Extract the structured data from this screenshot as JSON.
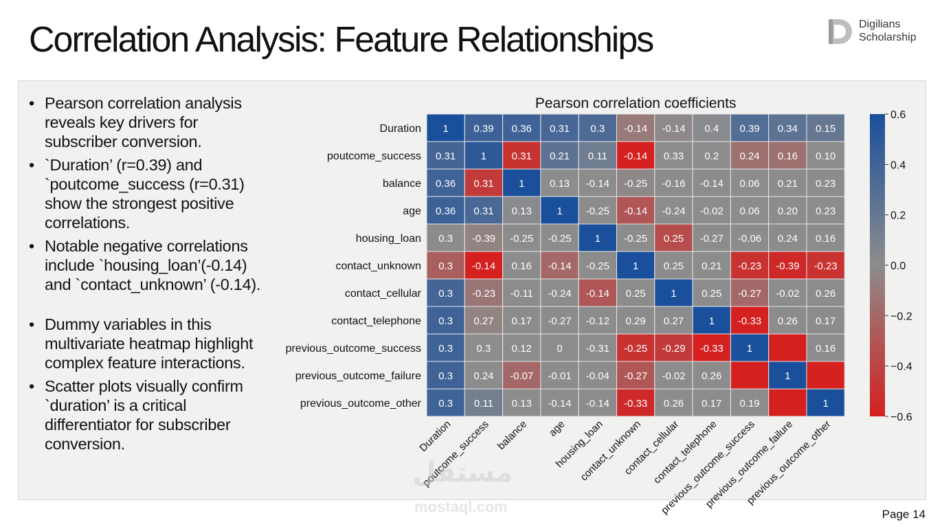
{
  "title": "Correlation Analysis: Feature Relationships",
  "logo": {
    "line1": "Digilians",
    "line2": "Scholarship"
  },
  "bullets": [
    "Pearson correlation analysis reveals key drivers for subscriber conversion.",
    "`Duration’ (r=0.39) and `poutcome_success (r=0.31) show the strongest positive correlations.",
    "Notable negative correlations include `housing_loan’(-0.14) and `contact_unknown’ (-0.14).",
    "Dummy variables in this multivariate heatmap highlight complex feature interactions.",
    "Scatter plots visually confirm `duration’ is a critical differentiator for subscriber conversion."
  ],
  "watermark": {
    "arabic": "مستقل",
    "latin": "mostaql.com"
  },
  "page": "Page 14",
  "colors": {
    "positive": "#1a4f9c",
    "neutral": "#8c8c8c",
    "negative": "#d4201f"
  },
  "chart_data": {
    "type": "heatmap",
    "title": "Pearson correlation coefficients",
    "rows": [
      "Duration",
      "poutcome_success",
      "balance",
      "age",
      "housing_loan",
      "contact_unknown",
      "contact_cellular",
      "contact_telephone",
      "previous_outcome_success",
      "previous_outcome_failure",
      "previous_outcome_other"
    ],
    "columns": [
      "Duration",
      "poutcome_success",
      "balance",
      "age",
      "housing_loan",
      "contact_unknown",
      "contact_cellular",
      "contact_telephone",
      "previous_outcome_success",
      "previous_outcome_failure",
      "previous_outcome_other"
    ],
    "labels": [
      [
        "1",
        "0.39",
        "0.36",
        "0.31",
        "0.3",
        "-0.14",
        "-0.14",
        "0.4",
        "0.39",
        "0.34",
        "0.15"
      ],
      [
        "0.31",
        "1",
        "0.31",
        "0.21",
        "0.11",
        "-0.14",
        "0.33",
        "0.2",
        "0.24",
        "0.16",
        "0.10"
      ],
      [
        "0.36",
        "0.31",
        "1",
        "0.13",
        "-0.14",
        "-0.25",
        "-0.16",
        "-0.14",
        "0.06",
        "0.21",
        "0.23"
      ],
      [
        "0.36",
        "0.31",
        "0.13",
        "1",
        "-0.25",
        "-0.14",
        "-0.24",
        "-0.02",
        "0.06",
        "0.20",
        "0.23"
      ],
      [
        "0.3",
        "-0.39",
        "-0.25",
        "-0.25",
        "1",
        "-0.25",
        "0.25",
        "-0.27",
        "-0.06",
        "0.24",
        "0.16"
      ],
      [
        "0.3",
        "-0.14",
        "0.16",
        "-0.14",
        "-0.25",
        "1",
        "0.25",
        "0.21",
        "-0.23",
        "-0.39",
        "-0.23"
      ],
      [
        "0.3",
        "-0.23",
        "-0.11",
        "-0.24",
        "-0.14",
        "0.25",
        "1",
        "0.25",
        "-0.27",
        "-0.02",
        "0.26"
      ],
      [
        "0.3",
        "0.27",
        "0.17",
        "-0.27",
        "-0.12",
        "0.29",
        "0.27",
        "1",
        "-0.33",
        "0.26",
        "0.17"
      ],
      [
        "0.3",
        "0.3",
        "0.12",
        "0",
        "-0.31",
        "-0.25",
        "-0.29",
        "-0.33",
        "1",
        "",
        "0.16"
      ],
      [
        "0.3",
        "0.24",
        "-0.07",
        "-0.01",
        "-0.04",
        "-0.27",
        "-0.02",
        "0.26",
        "",
        "1",
        ""
      ],
      [
        "0.3",
        "0.11",
        "0.13",
        "-0.14",
        "-0.14",
        "-0.33",
        "0.26",
        "0.17",
        "0.19",
        "",
        "1"
      ]
    ],
    "color_values": [
      [
        0.6,
        0.42,
        0.4,
        0.36,
        0.33,
        -0.1,
        -0.02,
        0.02,
        0.3,
        0.25,
        0.2
      ],
      [
        0.38,
        0.5,
        -0.5,
        0.25,
        0.15,
        -0.6,
        0.0,
        0.0,
        -0.15,
        -0.15,
        0.0
      ],
      [
        0.4,
        -0.45,
        0.6,
        0.0,
        0.0,
        -0.02,
        0.0,
        0.0,
        0.0,
        0.0,
        0.0
      ],
      [
        0.42,
        0.35,
        0.02,
        0.6,
        0.0,
        -0.3,
        0.0,
        0.0,
        0.0,
        0.0,
        0.0
      ],
      [
        0.0,
        -0.05,
        0.0,
        0.0,
        0.6,
        0.0,
        -0.35,
        0.0,
        0.0,
        0.0,
        0.0
      ],
      [
        -0.25,
        -0.6,
        0.0,
        -0.2,
        0.0,
        0.6,
        0.0,
        0.0,
        -0.5,
        -0.55,
        -0.5
      ],
      [
        0.38,
        -0.12,
        0.0,
        0.0,
        -0.3,
        0.0,
        0.6,
        0.0,
        -0.2,
        0.0,
        0.0
      ],
      [
        0.4,
        -0.05,
        0.0,
        0.0,
        0.0,
        0.0,
        0.0,
        0.6,
        -0.6,
        0.0,
        0.0
      ],
      [
        0.4,
        0.0,
        0.0,
        0.0,
        0.0,
        -0.5,
        -0.45,
        -0.6,
        0.6,
        -0.6,
        0.0
      ],
      [
        0.4,
        0.0,
        -0.2,
        0.0,
        0.0,
        -0.3,
        0.0,
        0.0,
        -0.6,
        0.6,
        -0.6
      ],
      [
        0.4,
        0.12,
        0.0,
        0.0,
        0.0,
        -0.55,
        0.0,
        0.0,
        0.0,
        -0.6,
        0.6
      ]
    ],
    "vmin": -0.6,
    "vmax": 0.6,
    "colorbar_ticks": [
      0.6,
      0.4,
      0.2,
      0.0,
      -0.2,
      -0.4,
      -0.6
    ],
    "colorbar_tick_labels": [
      "0.6",
      "0.4",
      "0.2",
      "0.0",
      "−0.2",
      "−0.4",
      "−0.6"
    ]
  }
}
